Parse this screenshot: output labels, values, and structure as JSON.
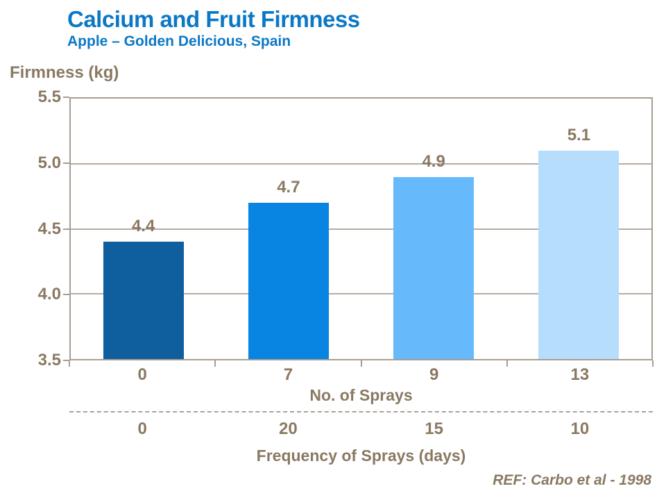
{
  "header": {
    "title": "Calcium and Fruit Firmness",
    "subtitle": "Apple – Golden Delicious, Spain"
  },
  "footer": {
    "ref": "REF: Carbo et al - 1998"
  },
  "colors": {
    "title_blue": "#0B78C6",
    "text_brown": "#8A7962",
    "axis_line": "#A89D90",
    "gridline": "#B6ACA0",
    "dash_line": "#ABA091",
    "bar_colors": [
      "#0F5E9E",
      "#0884E3",
      "#66BAFB",
      "#B7DDFD"
    ]
  },
  "chart_data": {
    "type": "bar",
    "title": "Calcium and Fruit Firmness",
    "subtitle": "Apple – Golden Delicious, Spain",
    "ylabel": "Firmness (kg)",
    "xlabel": "No. of Sprays",
    "xlabel2": "Frequency of Sprays (days)",
    "categories": [
      "0",
      "7",
      "9",
      "13"
    ],
    "values": [
      4.4,
      4.7,
      4.9,
      5.1
    ],
    "value_labels": [
      "4.4",
      "4.7",
      "4.9",
      "5.1"
    ],
    "frequency_values": [
      "0",
      "20",
      "15",
      "10"
    ],
    "ylim": [
      3.5,
      5.5
    ],
    "y_ticks": [
      5.5,
      5.0,
      4.5,
      4.0,
      3.5
    ],
    "y_tick_labels": [
      "5.5",
      "5.0",
      "4.5",
      "4.0",
      "3.5"
    ],
    "grid": true,
    "legend": false
  }
}
